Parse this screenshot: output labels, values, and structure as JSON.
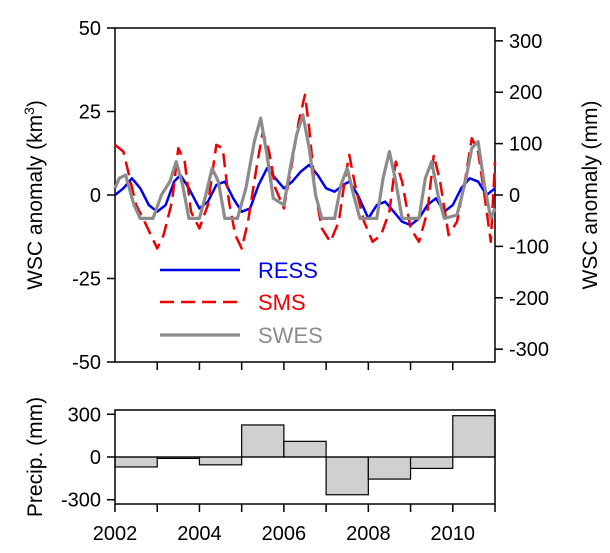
{
  "chart_data": [
    {
      "type": "line",
      "ylabel_left": "WSC anomaly (km",
      "ylabel_left_sup": "3",
      "ylabel_left_close": ")",
      "ylabel_right": "WSC anomaly (mm)",
      "xlim": [
        2002,
        2011
      ],
      "ylim_left": [
        -50,
        50
      ],
      "ylim_right": [
        -325,
        325
      ],
      "yticks_left": [
        "-50",
        "-25",
        "0",
        "25",
        "50"
      ],
      "yticks_left_values": [
        -50,
        -25,
        0,
        25,
        50
      ],
      "yticks_right": [
        "-300",
        "-200",
        "-100",
        "0",
        "100",
        "200",
        "300"
      ],
      "yticks_right_values": [
        -300,
        -200,
        -100,
        0,
        100,
        200,
        300
      ],
      "legend_position": "lower-left",
      "series": [
        {
          "name": "RESS",
          "axis": "left",
          "color": "#0000ee",
          "dash": "solid",
          "points": [
            [
              2002.0,
              0
            ],
            [
              2002.2,
              2
            ],
            [
              2002.4,
              5
            ],
            [
              2002.6,
              2
            ],
            [
              2002.8,
              -3
            ],
            [
              2003.0,
              -5
            ],
            [
              2003.2,
              -3
            ],
            [
              2003.4,
              4
            ],
            [
              2003.55,
              6
            ],
            [
              2003.75,
              2
            ],
            [
              2004.0,
              -4
            ],
            [
              2004.2,
              -2
            ],
            [
              2004.4,
              3
            ],
            [
              2004.6,
              4
            ],
            [
              2004.8,
              -1
            ],
            [
              2005.0,
              -5
            ],
            [
              2005.2,
              -4
            ],
            [
              2005.4,
              3
            ],
            [
              2005.6,
              8
            ],
            [
              2005.8,
              5
            ],
            [
              2006.0,
              2
            ],
            [
              2006.2,
              4
            ],
            [
              2006.4,
              7
            ],
            [
              2006.6,
              9
            ],
            [
              2006.8,
              6
            ],
            [
              2007.0,
              2
            ],
            [
              2007.2,
              1
            ],
            [
              2007.4,
              3
            ],
            [
              2007.55,
              4
            ],
            [
              2007.75,
              0
            ],
            [
              2008.0,
              -7
            ],
            [
              2008.2,
              -3
            ],
            [
              2008.4,
              -2
            ],
            [
              2008.6,
              -5
            ],
            [
              2008.8,
              -8
            ],
            [
              2009.0,
              -9
            ],
            [
              2009.2,
              -7
            ],
            [
              2009.4,
              -3
            ],
            [
              2009.6,
              -1
            ],
            [
              2009.8,
              -5
            ],
            [
              2010.0,
              -3
            ],
            [
              2010.2,
              2
            ],
            [
              2010.4,
              5
            ],
            [
              2010.6,
              4
            ],
            [
              2010.8,
              0
            ],
            [
              2011.0,
              2
            ]
          ]
        },
        {
          "name": "SMS",
          "axis": "left",
          "color": "#ee0000",
          "dash": "dashed",
          "points": [
            [
              2002.0,
              15
            ],
            [
              2002.2,
              13
            ],
            [
              2002.35,
              5
            ],
            [
              2002.5,
              -3
            ],
            [
              2002.7,
              -8
            ],
            [
              2002.85,
              -12
            ],
            [
              2003.0,
              -16
            ],
            [
              2003.15,
              -12
            ],
            [
              2003.35,
              -2
            ],
            [
              2003.5,
              14
            ],
            [
              2003.65,
              10
            ],
            [
              2003.8,
              -5
            ],
            [
              2004.0,
              -10
            ],
            [
              2004.2,
              -3
            ],
            [
              2004.4,
              15
            ],
            [
              2004.55,
              14
            ],
            [
              2004.7,
              -2
            ],
            [
              2004.85,
              -12
            ],
            [
              2005.0,
              -16
            ],
            [
              2005.15,
              -8
            ],
            [
              2005.35,
              8
            ],
            [
              2005.5,
              19
            ],
            [
              2005.65,
              13
            ],
            [
              2005.8,
              2
            ],
            [
              2006.0,
              -4
            ],
            [
              2006.2,
              10
            ],
            [
              2006.35,
              22
            ],
            [
              2006.5,
              30
            ],
            [
              2006.6,
              20
            ],
            [
              2006.75,
              0
            ],
            [
              2006.9,
              -10
            ],
            [
              2007.1,
              -14
            ],
            [
              2007.3,
              -8
            ],
            [
              2007.45,
              5
            ],
            [
              2007.55,
              12
            ],
            [
              2007.7,
              2
            ],
            [
              2007.9,
              -8
            ],
            [
              2008.1,
              -14
            ],
            [
              2008.3,
              -12
            ],
            [
              2008.5,
              -5
            ],
            [
              2008.65,
              10
            ],
            [
              2008.8,
              4
            ],
            [
              2009.0,
              -10
            ],
            [
              2009.2,
              -14
            ],
            [
              2009.4,
              -5
            ],
            [
              2009.55,
              12
            ],
            [
              2009.7,
              4
            ],
            [
              2009.9,
              -12
            ],
            [
              2010.1,
              -8
            ],
            [
              2010.3,
              5
            ],
            [
              2010.45,
              17
            ],
            [
              2010.6,
              13
            ],
            [
              2010.75,
              0
            ],
            [
              2010.9,
              -14
            ],
            [
              2011.0,
              10
            ]
          ]
        },
        {
          "name": "SWES",
          "axis": "left",
          "color": "#8c8c8c",
          "dash": "solid",
          "points": [
            [
              2002.0,
              2
            ],
            [
              2002.1,
              5
            ],
            [
              2002.25,
              6
            ],
            [
              2002.45,
              -3
            ],
            [
              2002.6,
              -7
            ],
            [
              2002.9,
              -7
            ],
            [
              2003.1,
              0
            ],
            [
              2003.3,
              4
            ],
            [
              2003.45,
              10
            ],
            [
              2003.6,
              3
            ],
            [
              2003.75,
              -7
            ],
            [
              2004.0,
              -7
            ],
            [
              2004.15,
              0
            ],
            [
              2004.3,
              8
            ],
            [
              2004.45,
              4
            ],
            [
              2004.6,
              -7
            ],
            [
              2004.9,
              -7
            ],
            [
              2005.1,
              2
            ],
            [
              2005.3,
              16
            ],
            [
              2005.45,
              23
            ],
            [
              2005.6,
              12
            ],
            [
              2005.75,
              -1
            ],
            [
              2006.0,
              -3
            ],
            [
              2006.15,
              8
            ],
            [
              2006.3,
              18
            ],
            [
              2006.45,
              24
            ],
            [
              2006.6,
              14
            ],
            [
              2006.75,
              0
            ],
            [
              2006.9,
              -7
            ],
            [
              2007.2,
              -7
            ],
            [
              2007.35,
              3
            ],
            [
              2007.5,
              8
            ],
            [
              2007.65,
              0
            ],
            [
              2007.8,
              -7
            ],
            [
              2008.2,
              -7
            ],
            [
              2008.35,
              5
            ],
            [
              2008.5,
              13
            ],
            [
              2008.65,
              4
            ],
            [
              2008.8,
              -7
            ],
            [
              2009.2,
              -7
            ],
            [
              2009.35,
              5
            ],
            [
              2009.5,
              10
            ],
            [
              2009.65,
              0
            ],
            [
              2009.8,
              -7
            ],
            [
              2010.1,
              -6
            ],
            [
              2010.3,
              4
            ],
            [
              2010.45,
              14
            ],
            [
              2010.6,
              16
            ],
            [
              2010.75,
              3
            ],
            [
              2010.9,
              -7
            ],
            [
              2011.0,
              -4
            ]
          ]
        }
      ]
    },
    {
      "type": "bar",
      "ylabel": "Precip. (mm)",
      "xlim": [
        2002,
        2011
      ],
      "ylim": [
        -330,
        330
      ],
      "yticks": [
        "-300",
        "0",
        "300"
      ],
      "yticks_values": [
        -300,
        0,
        300
      ],
      "xticks": [
        "2002",
        "2004",
        "2006",
        "2008",
        "2010"
      ],
      "xticks_values": [
        2002,
        2004,
        2006,
        2008,
        2010
      ],
      "bar_color": "#d0d0d0",
      "bars": [
        {
          "start": 2002,
          "end": 2003,
          "value": -70
        },
        {
          "start": 2003,
          "end": 2004,
          "value": -10
        },
        {
          "start": 2004,
          "end": 2005,
          "value": -55
        },
        {
          "start": 2005,
          "end": 2006,
          "value": 225
        },
        {
          "start": 2006,
          "end": 2007,
          "value": 110
        },
        {
          "start": 2007,
          "end": 2008,
          "value": -265
        },
        {
          "start": 2008,
          "end": 2009,
          "value": -155
        },
        {
          "start": 2009,
          "end": 2010,
          "value": -80
        },
        {
          "start": 2010,
          "end": 2011,
          "value": 290
        }
      ]
    }
  ]
}
